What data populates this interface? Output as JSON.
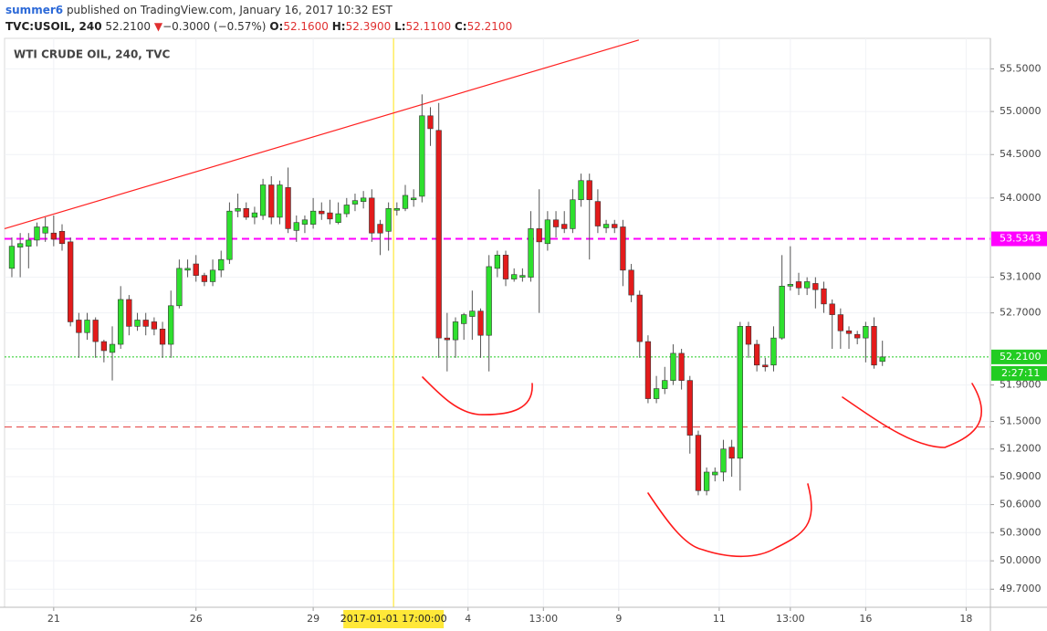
{
  "header": {
    "author": "summer6",
    "published": "published on TradingView.com, January 16, 2017 10:32 EST",
    "symbol": "TVC:USOIL, 240",
    "last": "52.2100",
    "change_arrow": "▼",
    "change": "−0.3000 (−0.57%)",
    "o_label": "O:",
    "o": "52.1600",
    "h_label": "H:",
    "h": "52.3900",
    "l_label": "L:",
    "l": "52.1100",
    "c_label": "C:",
    "c": "52.2100"
  },
  "chart_data": {
    "type": "candlestick",
    "title": "WTI CRUDE OIL, 240, TVC",
    "up_color": "#2ee02e",
    "down_color": "#e31b1b",
    "log_scale": true,
    "grid": true,
    "open": [
      53.2,
      53.44,
      53.45,
      53.52,
      53.6,
      53.6,
      53.62,
      53.5,
      52.62,
      52.48,
      52.62,
      52.38,
      52.26,
      52.35,
      52.85,
      52.55,
      52.62,
      52.6,
      52.52,
      52.35,
      52.78,
      53.18,
      53.25,
      53.12,
      53.05,
      53.18,
      53.3,
      53.85,
      53.88,
      53.78,
      53.8,
      54.15,
      53.78,
      54.12,
      53.63,
      53.7,
      53.7,
      53.85,
      53.83,
      53.72,
      53.82,
      53.93,
      53.96,
      54.0,
      53.7,
      53.62,
      53.86,
      53.88,
      53.98,
      54.02,
      54.95,
      54.78,
      52.42,
      52.4,
      52.58,
      52.66,
      52.72,
      52.45,
      53.2,
      53.35,
      53.08,
      53.1,
      53.1,
      53.65,
      53.48,
      53.75,
      53.7,
      53.65,
      53.98,
      54.2,
      53.96,
      53.66,
      53.7,
      53.67,
      53.18,
      52.9,
      52.38,
      51.75,
      51.86,
      51.95,
      52.25,
      51.95,
      51.35,
      50.75,
      50.92,
      50.95,
      51.22,
      51.1,
      52.55,
      52.35,
      52.12,
      52.12,
      52.42,
      53.0,
      53.05,
      52.98,
      53.03,
      52.97,
      52.8,
      52.68,
      52.5,
      52.46,
      52.42,
      52.55,
      52.16
    ],
    "high": [
      53.55,
      53.6,
      53.6,
      53.72,
      53.78,
      53.8,
      53.7,
      53.55,
      52.7,
      52.7,
      52.65,
      52.4,
      52.55,
      53.0,
      52.9,
      52.7,
      52.7,
      52.65,
      52.6,
      52.95,
      53.3,
      53.3,
      53.35,
      53.15,
      53.3,
      53.4,
      53.95,
      54.05,
      53.95,
      53.9,
      54.22,
      54.25,
      54.2,
      54.35,
      53.8,
      53.8,
      54.0,
      53.95,
      53.98,
      53.95,
      54.0,
      54.05,
      54.08,
      54.1,
      53.75,
      53.95,
      53.95,
      54.15,
      54.1,
      55.2,
      55.05,
      55.1,
      52.7,
      52.65,
      52.7,
      52.95,
      52.75,
      53.35,
      53.4,
      53.4,
      53.2,
      53.2,
      53.85,
      54.1,
      53.85,
      53.85,
      53.85,
      54.1,
      54.28,
      54.28,
      54.1,
      53.75,
      53.75,
      53.75,
      53.25,
      52.95,
      52.45,
      52.0,
      52.1,
      52.35,
      52.3,
      52.0,
      51.4,
      51.0,
      51.0,
      51.3,
      51.3,
      52.6,
      52.6,
      52.4,
      52.2,
      52.55,
      53.35,
      53.45,
      53.15,
      53.1,
      53.1,
      53.05,
      52.85,
      52.75,
      52.55,
      52.5,
      52.6,
      52.65,
      52.39
    ],
    "low": [
      53.1,
      53.1,
      53.2,
      53.45,
      53.5,
      53.45,
      53.4,
      52.55,
      52.2,
      52.4,
      52.2,
      52.15,
      51.95,
      52.3,
      52.45,
      52.5,
      52.45,
      52.45,
      52.2,
      52.2,
      52.75,
      53.1,
      53.05,
      53.0,
      53.0,
      53.1,
      53.25,
      53.78,
      53.75,
      53.7,
      53.75,
      53.7,
      53.7,
      53.6,
      53.5,
      53.6,
      53.65,
      53.75,
      53.7,
      53.7,
      53.78,
      53.85,
      53.88,
      53.5,
      53.35,
      53.4,
      53.8,
      53.85,
      53.9,
      53.95,
      54.6,
      52.2,
      52.05,
      52.2,
      52.4,
      52.4,
      52.2,
      52.05,
      53.1,
      53.0,
      53.05,
      53.05,
      53.05,
      52.7,
      53.4,
      53.55,
      53.6,
      53.6,
      53.9,
      53.3,
      53.6,
      53.6,
      53.6,
      53.0,
      52.82,
      52.2,
      51.7,
      51.7,
      51.8,
      51.9,
      51.85,
      51.15,
      50.7,
      50.7,
      50.85,
      50.85,
      50.9,
      50.75,
      52.2,
      52.05,
      52.05,
      52.05,
      52.4,
      52.95,
      52.9,
      52.9,
      52.75,
      52.7,
      52.3,
      52.3,
      52.3,
      52.35,
      52.15,
      52.08,
      52.11
    ],
    "close": [
      53.45,
      53.48,
      53.52,
      53.67,
      53.67,
      53.53,
      53.48,
      52.6,
      52.48,
      52.62,
      52.38,
      52.28,
      52.35,
      52.85,
      52.55,
      52.62,
      52.55,
      52.52,
      52.35,
      52.78,
      53.2,
      53.2,
      53.12,
      53.05,
      53.18,
      53.3,
      53.85,
      53.88,
      53.78,
      53.83,
      54.15,
      53.78,
      54.15,
      53.65,
      53.72,
      53.75,
      53.85,
      53.82,
      53.76,
      53.82,
      53.92,
      53.97,
      54.0,
      53.6,
      53.6,
      53.88,
      53.88,
      54.03,
      54.0,
      54.95,
      54.8,
      52.42,
      52.4,
      52.6,
      52.68,
      52.72,
      52.45,
      53.22,
      53.35,
      53.08,
      53.13,
      53.12,
      53.65,
      53.5,
      53.75,
      53.67,
      53.65,
      53.98,
      54.2,
      53.98,
      53.68,
      53.7,
      53.66,
      53.18,
      52.9,
      52.38,
      51.75,
      51.86,
      51.95,
      52.25,
      51.95,
      51.35,
      50.75,
      50.95,
      50.95,
      51.2,
      51.1,
      52.55,
      52.35,
      52.12,
      52.1,
      52.42,
      53.0,
      53.02,
      52.98,
      53.05,
      52.96,
      52.8,
      52.68,
      52.5,
      52.47,
      52.42,
      52.55,
      52.12,
      52.21
    ],
    "xlim": [
      -0.87,
      116.9
    ],
    "xticks": [
      {
        "value": 5,
        "label": "21"
      },
      {
        "value": 22,
        "label": "26"
      },
      {
        "value": 36,
        "label": "29"
      },
      {
        "value": 54.5,
        "label": "4"
      },
      {
        "value": 63.5,
        "label": "13:00"
      },
      {
        "value": 72.5,
        "label": "9"
      },
      {
        "value": 84.5,
        "label": "11"
      },
      {
        "value": 93,
        "label": "13:00"
      },
      {
        "value": 102,
        "label": "16"
      },
      {
        "value": 114,
        "label": "18"
      }
    ],
    "ylim": [
      49.51,
      55.86
    ],
    "yticks": [
      {
        "value": 55.5,
        "label": "55.5000"
      },
      {
        "value": 55.0,
        "label": "55.0000"
      },
      {
        "value": 54.5,
        "label": "54.5000"
      },
      {
        "value": 54.0,
        "label": "54.0000"
      },
      {
        "value": 53.1,
        "label": "53.1000"
      },
      {
        "value": 52.7,
        "label": "52.7000"
      },
      {
        "value": 51.9,
        "label": "51.9000"
      },
      {
        "value": 51.5,
        "label": "51.5000"
      },
      {
        "value": 51.2,
        "label": "51.2000"
      },
      {
        "value": 50.9,
        "label": "50.9000"
      },
      {
        "value": 50.6,
        "label": "50.6000"
      },
      {
        "value": 50.3,
        "label": "50.3000"
      },
      {
        "value": 50.0,
        "label": "50.0000"
      },
      {
        "value": 49.7,
        "label": "49.7000"
      }
    ],
    "levels": [
      {
        "value": 53.5343,
        "label": "53.5343",
        "color": "#ff00ff",
        "style": "dashed"
      },
      {
        "value": 51.44,
        "color": "#e33b3b",
        "style": "dashed"
      },
      {
        "value": 52.21,
        "label": "52.2100",
        "color": "#22cc22",
        "style": "dotted"
      }
    ],
    "countdown": "2:27:11",
    "trendline": {
      "x": [
        -0.87,
        74.9
      ],
      "y": [
        53.65,
        55.84
      ],
      "color": "#ff2020"
    },
    "crosshair": {
      "x": 45.6,
      "label": "2017-01-01 17:00:00",
      "color": "#ffe838"
    }
  }
}
